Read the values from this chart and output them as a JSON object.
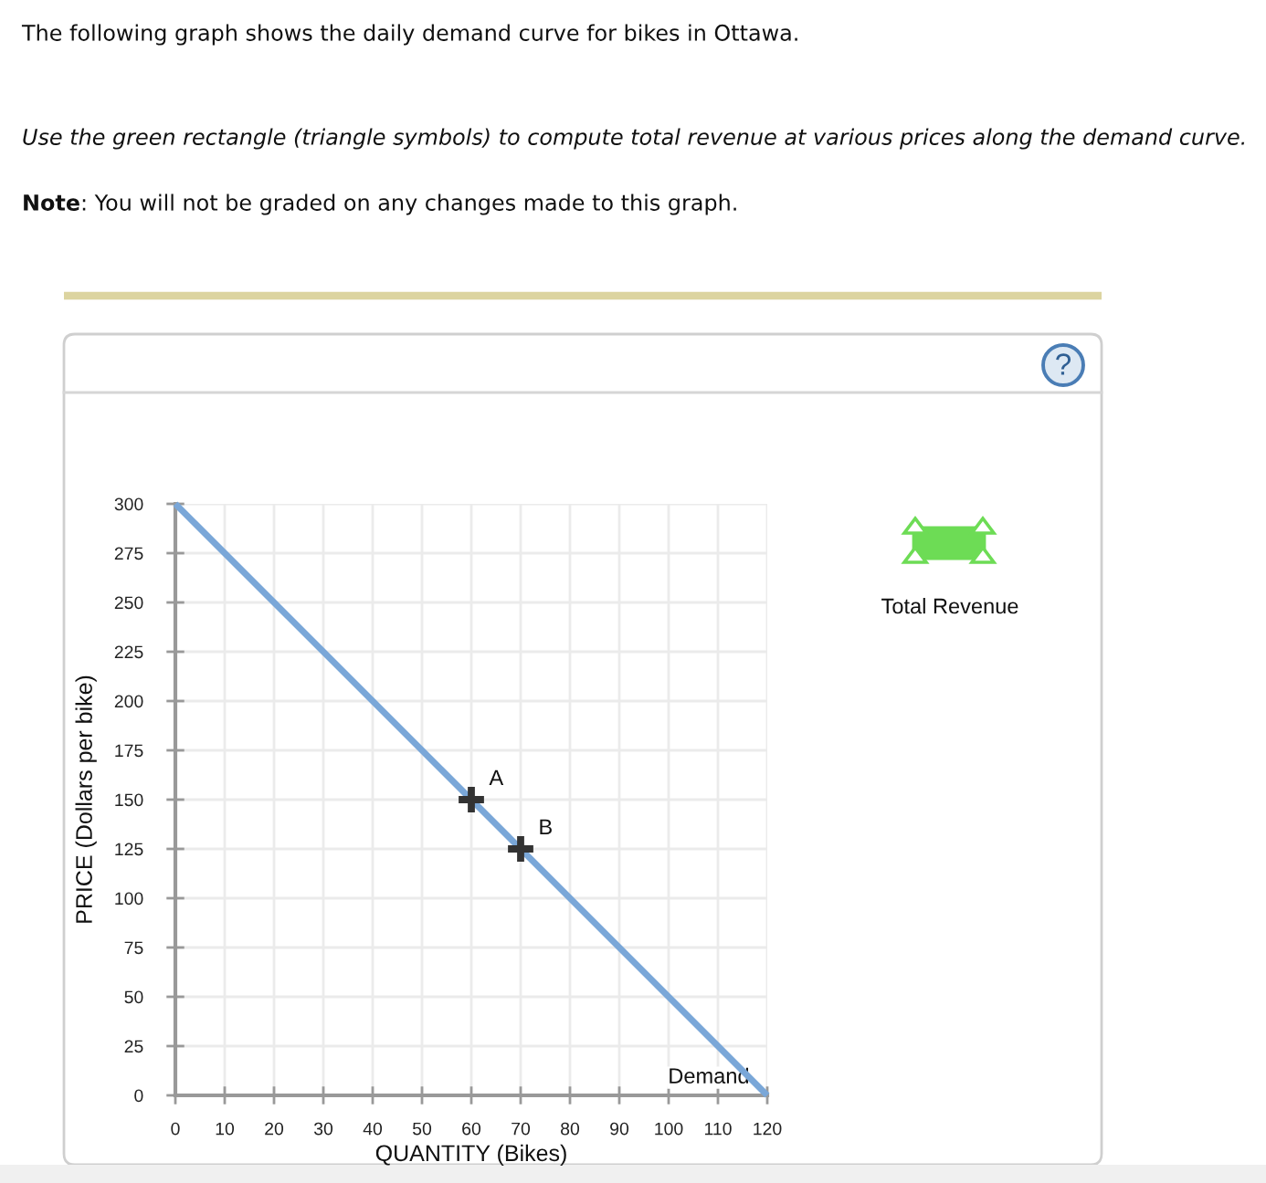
{
  "chart_data": {
    "type": "line",
    "title": "The following graph shows the daily demand curve for bikes in Ottawa.",
    "subtitle": "Use the green rectangle (triangle symbols) to compute total revenue at various prices along the demand curve.",
    "annotations": [
      "Note: You will not be graded on any changes made to this graph.",
      "Total Revenue",
      "?"
    ],
    "xlabel": "QUANTITY (Bikes)",
    "ylabel": "PRICE (Dollars per bike)",
    "xlim": [
      0,
      120
    ],
    "xticks": [
      0,
      10,
      20,
      30,
      40,
      50,
      60,
      70,
      80,
      90,
      100,
      110,
      120
    ],
    "ylim": [
      0,
      300
    ],
    "yticks": [
      0,
      25,
      50,
      75,
      100,
      125,
      150,
      175,
      200,
      225,
      250,
      275,
      300
    ],
    "grid": true,
    "series": [
      {
        "name": "Demand",
        "color": "#7aa7d8",
        "x": [
          0,
          120
        ],
        "values": [
          300,
          0
        ]
      },
      {
        "name": "A",
        "type": "scatter",
        "marker": "cross",
        "color": "#333333",
        "x": [
          60
        ],
        "values": [
          150
        ]
      },
      {
        "name": "B",
        "type": "scatter",
        "marker": "cross",
        "color": "#333333",
        "x": [
          70
        ],
        "values": [
          125
        ]
      }
    ]
  }
}
